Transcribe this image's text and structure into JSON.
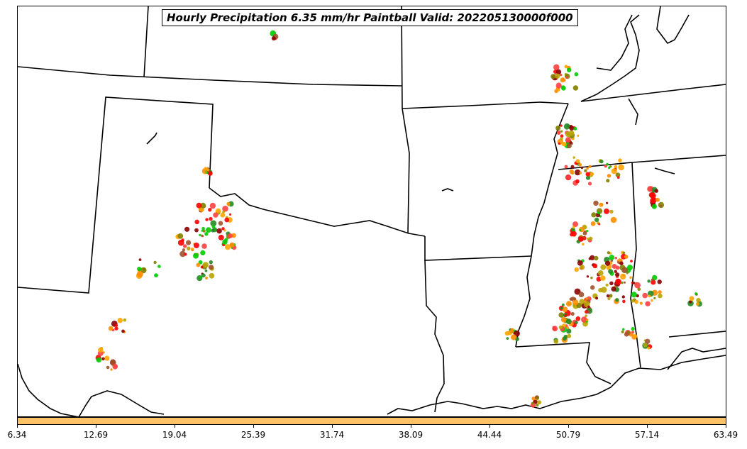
{
  "title": "Hourly Precipitation 6.35 mm/hr Paintball Valid: 202205130000f000",
  "colors": {
    "boundary": "#000000",
    "colorbar_fill": "#ffc266",
    "members": [
      "#ff0000",
      "#8b0000",
      "#ff8c00",
      "#ffa500",
      "#00cc00",
      "#228b22",
      "#808000",
      "#b8a400",
      "#a0522d",
      "#ff4040"
    ]
  },
  "colorbar": {
    "ticks": [
      "6.34",
      "12.69",
      "19.04",
      "25.39",
      "31.74",
      "38.09",
      "44.44",
      "50.79",
      "57.14",
      "63.49"
    ]
  }
}
